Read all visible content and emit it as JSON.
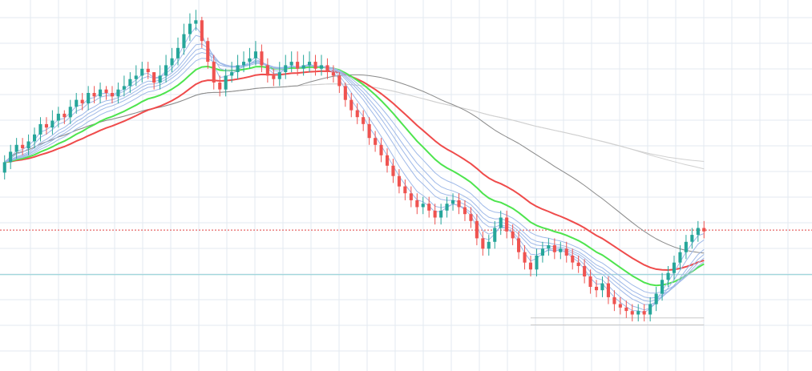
{
  "chart_data": {
    "type": "candlestick",
    "title": "",
    "xlabel": "",
    "ylabel": "",
    "x_unit": "bar index",
    "grid": true,
    "legend": "none",
    "ylim": [
      0,
      100
    ],
    "colors": {
      "up": "#26a69a",
      "down": "#ef5350",
      "grid": "#e3eaf0",
      "ribbon": "#9fb9e8",
      "ema_green": "#4ee44e",
      "ema_red": "#ef4b4b",
      "ma_dark": "#8a8a8a",
      "ma_light": "#d0d0d0",
      "price_line": "#e04040",
      "horizontal_line": "#8ccfd6"
    },
    "levels": {
      "price_line": 35.4,
      "horizontal_line": 22.5,
      "range_band": [
        10.0,
        8.0
      ]
    },
    "candles": {
      "open": [
        52,
        55,
        58,
        60,
        59,
        61,
        63,
        66,
        65,
        67,
        69,
        68,
        71,
        73,
        72,
        75,
        74,
        76,
        75,
        74,
        76,
        77,
        79,
        80,
        82,
        81,
        78,
        80,
        83,
        85,
        88,
        92,
        95,
        96,
        90,
        84,
        78,
        76,
        80,
        81,
        83,
        84,
        85,
        87,
        83,
        80,
        79,
        81,
        83,
        84,
        82,
        83,
        84,
        82,
        83,
        81,
        80,
        77,
        73,
        70,
        68,
        66,
        62,
        60,
        57,
        54,
        51,
        48,
        46,
        44,
        42,
        43,
        41,
        39,
        41,
        43,
        44,
        42,
        40,
        38,
        33,
        30,
        32,
        36,
        39,
        35,
        33,
        29,
        26,
        24,
        28,
        30,
        31,
        29,
        30,
        28,
        26,
        25,
        22,
        19,
        18,
        20,
        16,
        14,
        13,
        12,
        11,
        12,
        11,
        14,
        17,
        21,
        23,
        26,
        29,
        32,
        34,
        36
      ],
      "close": [
        55,
        58,
        60,
        59,
        61,
        63,
        66,
        65,
        67,
        69,
        68,
        71,
        73,
        72,
        75,
        74,
        76,
        75,
        74,
        76,
        77,
        79,
        80,
        82,
        81,
        78,
        80,
        83,
        85,
        88,
        92,
        95,
        96,
        90,
        84,
        78,
        76,
        80,
        81,
        83,
        84,
        85,
        87,
        83,
        80,
        79,
        81,
        83,
        84,
        82,
        83,
        84,
        82,
        83,
        81,
        80,
        77,
        73,
        70,
        68,
        66,
        62,
        60,
        57,
        54,
        51,
        48,
        46,
        44,
        42,
        43,
        41,
        39,
        41,
        43,
        44,
        42,
        40,
        38,
        33,
        30,
        32,
        36,
        39,
        35,
        33,
        29,
        26,
        24,
        28,
        30,
        31,
        29,
        30,
        28,
        26,
        25,
        22,
        19,
        18,
        20,
        16,
        14,
        13,
        12,
        11,
        12,
        11,
        14,
        17,
        21,
        23,
        26,
        29,
        32,
        34,
        36,
        35
      ],
      "high": [
        57,
        60,
        62,
        62,
        63,
        65,
        68,
        68,
        70,
        71,
        70,
        73,
        75,
        75,
        77,
        77,
        78,
        77,
        77,
        78,
        80,
        81,
        83,
        84,
        84,
        81,
        83,
        86,
        88,
        91,
        95,
        98,
        99,
        97,
        91,
        86,
        80,
        82,
        84,
        86,
        87,
        88,
        90,
        89,
        85,
        82,
        84,
        86,
        87,
        87,
        86,
        87,
        86,
        86,
        85,
        83,
        81,
        78,
        75,
        72,
        70,
        68,
        64,
        62,
        59,
        56,
        53,
        50,
        48,
        46,
        45,
        45,
        43,
        43,
        45,
        46,
        46,
        44,
        42,
        40,
        35,
        34,
        38,
        41,
        41,
        37,
        35,
        31,
        28,
        30,
        32,
        33,
        33,
        32,
        32,
        30,
        28,
        27,
        24,
        21,
        22,
        22,
        18,
        16,
        15,
        14,
        14,
        14,
        16,
        19,
        23,
        25,
        28,
        31,
        34,
        36,
        38,
        38
      ],
      "low": [
        50,
        53,
        56,
        57,
        57,
        59,
        61,
        63,
        63,
        65,
        66,
        66,
        69,
        70,
        70,
        72,
        72,
        73,
        72,
        72,
        74,
        75,
        77,
        78,
        79,
        76,
        76,
        78,
        81,
        83,
        86,
        90,
        93,
        88,
        82,
        76,
        74,
        74,
        78,
        79,
        81,
        82,
        83,
        81,
        78,
        77,
        77,
        79,
        81,
        80,
        80,
        81,
        80,
        80,
        79,
        78,
        75,
        71,
        68,
        66,
        64,
        60,
        58,
        55,
        52,
        49,
        46,
        44,
        42,
        40,
        40,
        39,
        37,
        37,
        39,
        41,
        40,
        38,
        36,
        31,
        28,
        28,
        30,
        34,
        33,
        31,
        27,
        24,
        22,
        22,
        26,
        28,
        27,
        27,
        26,
        24,
        23,
        20,
        17,
        16,
        16,
        14,
        12,
        11,
        10,
        9,
        9,
        9,
        9,
        12,
        15,
        19,
        21,
        24,
        27,
        30,
        32,
        33
      ]
    },
    "moving_averages": [
      {
        "style": "ribbon",
        "period": 3
      },
      {
        "style": "ribbon",
        "period": 5
      },
      {
        "style": "ribbon",
        "period": 8
      },
      {
        "style": "ribbon",
        "period": 10
      },
      {
        "style": "ribbon",
        "period": 12
      },
      {
        "style": "ribbon",
        "period": 15
      },
      {
        "style": "ema_green",
        "period": 20
      },
      {
        "style": "ema_red",
        "period": 30
      },
      {
        "style": "ma_dark",
        "period": 50
      },
      {
        "style": "ma_light",
        "period": 100
      },
      {
        "style": "ma_light",
        "period": 200
      }
    ]
  }
}
